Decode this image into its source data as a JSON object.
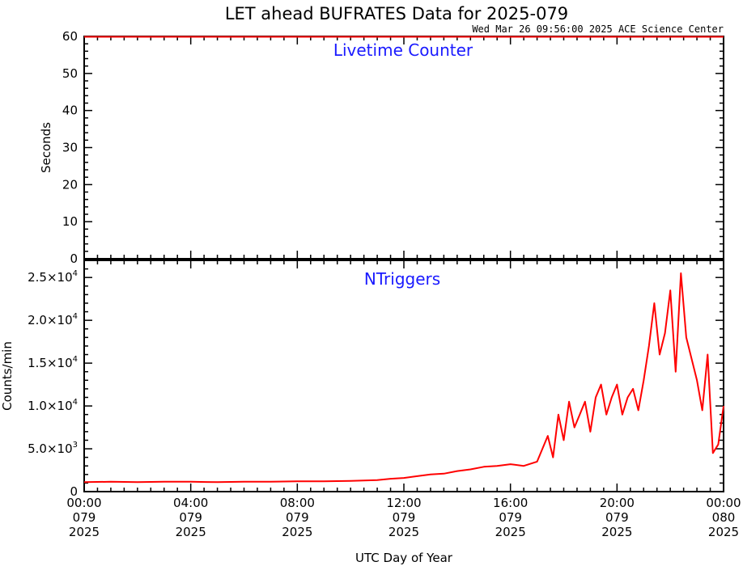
{
  "title": "LET ahead BUFRATES Data for 2025-079",
  "subtitle": "Wed Mar 26 09:56:00 2025 ACE Science Center",
  "xlabel": "UTC Day of Year",
  "x_ticks": [
    {
      "time": "00:00",
      "doy": "079",
      "year": "2025"
    },
    {
      "time": "04:00",
      "doy": "079",
      "year": "2025"
    },
    {
      "time": "08:00",
      "doy": "079",
      "year": "2025"
    },
    {
      "time": "12:00",
      "doy": "079",
      "year": "2025"
    },
    {
      "time": "16:00",
      "doy": "079",
      "year": "2025"
    },
    {
      "time": "20:00",
      "doy": "079",
      "year": "2025"
    },
    {
      "time": "00:00",
      "doy": "080",
      "year": "2025"
    }
  ],
  "line_color": "#ff0000",
  "label_color": "#1a1aff",
  "chart_data": [
    {
      "type": "line",
      "title": "Livetime Counter",
      "ylabel": "Seconds",
      "xlim_hours": [
        0,
        24
      ],
      "ylim": [
        0,
        60
      ],
      "y_ticks": [
        {
          "value": 0,
          "label": "0"
        },
        {
          "value": 10,
          "label": "10"
        },
        {
          "value": 20,
          "label": "20"
        },
        {
          "value": 30,
          "label": "30"
        },
        {
          "value": 40,
          "label": "40"
        },
        {
          "value": 50,
          "label": "50"
        },
        {
          "value": 60,
          "label": "60"
        }
      ],
      "series": [
        {
          "x_hours": [
            0,
            4,
            8,
            12,
            16,
            20,
            24
          ],
          "values": [
            59.9,
            59.9,
            59.9,
            59.9,
            59.9,
            59.9,
            59.9
          ]
        }
      ]
    },
    {
      "type": "line",
      "title": "NTriggers",
      "ylabel": "Counts/min",
      "xlim_hours": [
        0,
        24
      ],
      "ylim": [
        0,
        27000
      ],
      "y_ticks": [
        {
          "value": 0,
          "mant": "0",
          "exp": ""
        },
        {
          "value": 5000,
          "mant": "5.0×10",
          "exp": "3"
        },
        {
          "value": 10000,
          "mant": "1.0×10",
          "exp": "4"
        },
        {
          "value": 15000,
          "mant": "1.5×10",
          "exp": "4"
        },
        {
          "value": 20000,
          "mant": "2.0×10",
          "exp": "4"
        },
        {
          "value": 25000,
          "mant": "2.5×10",
          "exp": "4"
        }
      ],
      "series": [
        {
          "x_hours": [
            0,
            1,
            2,
            3,
            4,
            5,
            6,
            7,
            8,
            9,
            10,
            11,
            11.5,
            12,
            12.5,
            13,
            13.5,
            14,
            14.5,
            15,
            15.5,
            16,
            16.5,
            17,
            17.2,
            17.4,
            17.6,
            17.8,
            18,
            18.2,
            18.4,
            18.6,
            18.8,
            19,
            19.2,
            19.4,
            19.6,
            19.8,
            20,
            20.2,
            20.4,
            20.6,
            20.8,
            21,
            21.2,
            21.4,
            21.6,
            21.8,
            22,
            22.2,
            22.4,
            22.6,
            22.8,
            23,
            23.2,
            23.4,
            23.6,
            23.8,
            24
          ],
          "values": [
            1100,
            1150,
            1100,
            1150,
            1150,
            1100,
            1150,
            1150,
            1200,
            1200,
            1250,
            1350,
            1500,
            1600,
            1800,
            2000,
            2100,
            2400,
            2600,
            2900,
            3000,
            3200,
            3000,
            3500,
            5000,
            6500,
            4000,
            9000,
            6000,
            10500,
            7500,
            9000,
            10500,
            7000,
            11000,
            12500,
            9000,
            11000,
            12500,
            9000,
            11000,
            12000,
            9500,
            13000,
            17000,
            22000,
            16000,
            18500,
            23500,
            14000,
            25500,
            18000,
            15500,
            13000,
            9500,
            16000,
            4500,
            5500,
            10000
          ]
        }
      ]
    }
  ]
}
